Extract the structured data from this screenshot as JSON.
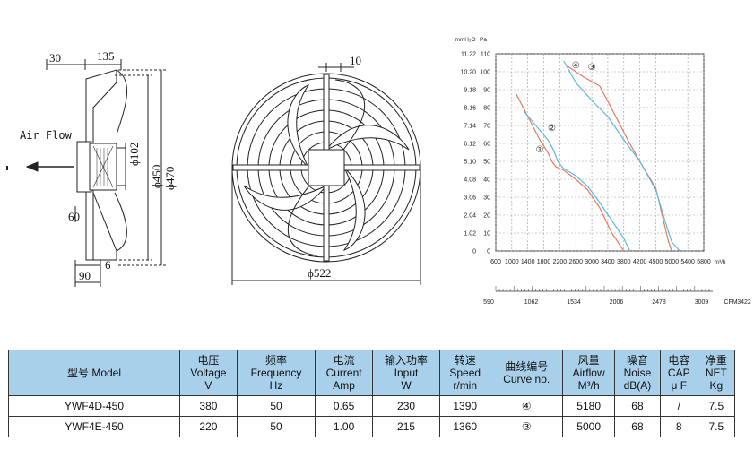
{
  "drawing_labels": {
    "side_dim_30": "30",
    "side_dim_135": "135",
    "air_flow": "Air Flow",
    "dim_phi102": "ϕ102",
    "dim_phi450": "ϕ450",
    "dim_phi470": "ϕ470",
    "dim_60": "60",
    "dim_90": "90",
    "dim_6": "6",
    "front_dim_10": "10",
    "front_dim_phi522": "ϕ522"
  },
  "chart_data": {
    "type": "line",
    "y_left_label": "mmH2O",
    "y_left_label_display": "mmH₂O",
    "y_right_label": "Pa",
    "y_left_ticks": [
      "11.22",
      "10.20",
      "9.18",
      "8.16",
      "7.14",
      "6.12",
      "5.10",
      "4.08",
      "3.06",
      "2.04",
      "1.02",
      "0"
    ],
    "y_right_ticks": [
      "110",
      "100",
      "90",
      "80",
      "70",
      "60",
      "50",
      "40",
      "30",
      "20",
      "10",
      "0"
    ],
    "x_top_ticks": [
      "600",
      "1000",
      "1400",
      "1800",
      "2200",
      "2600",
      "3000",
      "3400",
      "3800",
      "4200",
      "4500",
      "5000",
      "5400",
      "5800"
    ],
    "x_top_unit": "m³/h",
    "x_bottom_ticks": [
      "590",
      "1062",
      "1534",
      "2006",
      "2478",
      "3009",
      "3422"
    ],
    "x_bottom_unit": "CFM",
    "ylim": [
      0,
      110
    ],
    "grid": true,
    "colors": {
      "blue": "#5bb8e4",
      "red": "#e8785a"
    },
    "curve_markers": [
      "①",
      "②",
      "③",
      "④"
    ],
    "series": [
      {
        "name": "①",
        "color": "#e8785a",
        "x": [
          1100,
          1400,
          1700,
          1900,
          2000,
          2100,
          2300,
          2600,
          2900,
          3200,
          3500,
          3800
        ],
        "y": [
          88,
          75,
          62,
          55,
          50,
          47,
          45,
          40,
          34,
          24,
          10,
          0
        ]
      },
      {
        "name": "②",
        "color": "#5bb8e4",
        "x": [
          1300,
          1600,
          1900,
          2050,
          2150,
          2300,
          2600,
          2900,
          3200,
          3500,
          3800,
          3950
        ],
        "y": [
          78,
          70,
          62,
          56,
          50,
          46,
          42,
          36,
          27,
          17,
          7,
          0
        ]
      },
      {
        "name": "③",
        "color": "#e8785a",
        "x": [
          2400,
          2800,
          3200,
          3600,
          3900,
          4200,
          4500,
          4700,
          4900,
          5000
        ],
        "y": [
          103,
          97,
          92,
          75,
          62,
          50,
          35,
          20,
          5,
          0
        ]
      },
      {
        "name": "④",
        "color": "#5bb8e4",
        "x": [
          2300,
          2600,
          3000,
          3400,
          3800,
          4200,
          4500,
          4800,
          5000,
          5200
        ],
        "y": [
          106,
          94,
          84,
          75,
          62,
          50,
          34,
          16,
          5,
          0
        ]
      }
    ]
  },
  "table": {
    "headers": [
      {
        "zh": "型号 Model",
        "en": "",
        "unit": ""
      },
      {
        "zh": "电压",
        "en": "Voltage",
        "unit": "V"
      },
      {
        "zh": "频率",
        "en": "Frequency",
        "unit": "Hz"
      },
      {
        "zh": "电流",
        "en": "Current",
        "unit": "Amp"
      },
      {
        "zh": "输入功率",
        "en": "Input",
        "unit": "W"
      },
      {
        "zh": "转速",
        "en": "Speed",
        "unit": "r/min"
      },
      {
        "zh": "曲线编号",
        "en": "Curve no.",
        "unit": ""
      },
      {
        "zh": "风量",
        "en": "Airflow",
        "unit": "M³/h"
      },
      {
        "zh": "噪音",
        "en": "Noise",
        "unit": "dB(A)"
      },
      {
        "zh": "电容",
        "en": "CAP",
        "unit": "μ F"
      },
      {
        "zh": "净重",
        "en": "NET",
        "unit": "Kg"
      }
    ],
    "rows": [
      [
        "YWF4D-450",
        "380",
        "50",
        "0.65",
        "230",
        "1390",
        "④",
        "5180",
        "68",
        "/",
        "7.5"
      ],
      [
        "YWF4E-450",
        "220",
        "50",
        "1.00",
        "215",
        "1360",
        "③",
        "5000",
        "68",
        "8",
        "7.5"
      ]
    ]
  }
}
